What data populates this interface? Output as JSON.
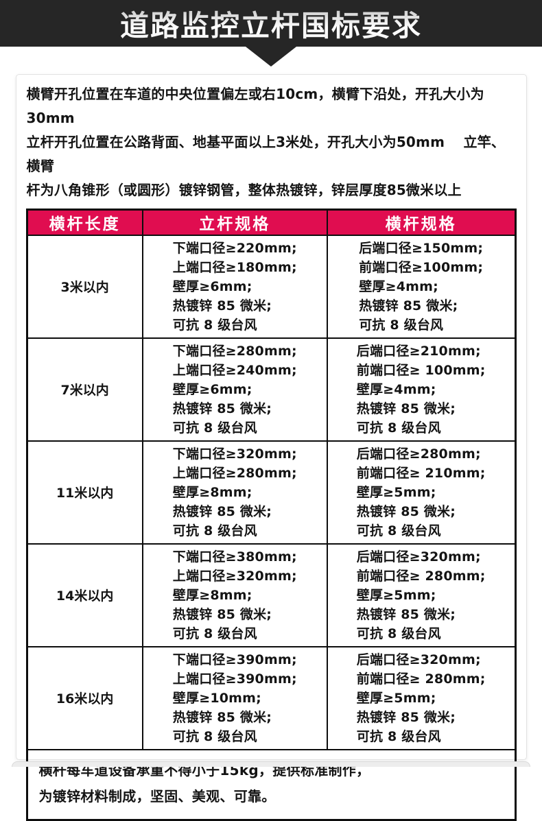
{
  "colors": {
    "accent": "#e00d50",
    "banner_bg": "#262626",
    "table_border": "#0d0d0d"
  },
  "banner": {
    "title": "道路监控立杆国标要求"
  },
  "intro": {
    "lines": [
      "横臂开孔位置在车道的中央位置偏左或右10cm，横臂下沿处，开孔大小为30mm",
      "立杆开孔位置在公路背面、地基平面以上3米处，开孔大小为50mm　 立竿、横臂",
      "杆为八角锥形（或圆形）镀锌钢管，整体热镀锌，锌层厚度85微米以上"
    ]
  },
  "table": {
    "headers": [
      "横杆长度",
      "立杆规格",
      "横杆规格"
    ],
    "rows": [
      {
        "length": "3米以内",
        "pole": [
          "下端口径≥220mm;",
          "上端口径≥180mm;",
          "壁厚≥6mm;",
          "热镀锌 85 微米;",
          "可抗 8 级台风"
        ],
        "crossbar": [
          "后端口径≥150mm;",
          "前端口径≥100mm;",
          "壁厚≥4mm;",
          "热镀锌 85 微米;",
          "可抗 8 级台风"
        ]
      },
      {
        "length": "7米以内",
        "pole": [
          "下端口径≥280mm;",
          "上端口径≥240mm;",
          "壁厚≥6mm;",
          "热镀锌 85 微米;",
          "可抗 8 级台风"
        ],
        "crossbar": [
          "后端口径≥210mm;",
          "前端口径≥ 100mm;",
          "壁厚≥4mm;",
          "热镀锌 85 微米;",
          "可抗 8 级台风"
        ]
      },
      {
        "length": "11米以内",
        "pole": [
          "下端口径≥320mm;",
          "上端口径≥280mm;",
          "壁厚≥8mm;",
          "热镀锌 85 微米;",
          "可抗 8 级台风"
        ],
        "crossbar": [
          "后端口径≥280mm;",
          "前端口径≥ 210mm;",
          "壁厚≥5mm;",
          "热镀锌 85 微米;",
          "可抗 8 级台风"
        ]
      },
      {
        "length": "14米以内",
        "pole": [
          "下端口径≥380mm;",
          "上端口径≥320mm;",
          "壁厚≥8mm;",
          "热镀锌 85 微米;",
          "可抗 8 级台风"
        ],
        "crossbar": [
          "后端口径≥320mm;",
          "前端口径≥ 280mm;",
          "壁厚≥5mm;",
          "热镀锌 85 微米;",
          "可抗 8 级台风"
        ]
      },
      {
        "length": "16米以内",
        "pole": [
          "下端口径≥390mm;",
          "上端口径≥390mm;",
          "壁厚≥10mm;",
          "热镀锌 85 微米;",
          "可抗 8 级台风"
        ],
        "crossbar": [
          "后端口径≥320mm;",
          "前端口径≥ 280mm;",
          "壁厚≥5mm;",
          "热镀锌 85 微米;",
          "可抗 8 级台风"
        ]
      }
    ],
    "footer_lines": [
      "横杆每车道设备承重不得小于15kg，提供标准制作，",
      "为镀锌材料制成，坚固、美观、可靠。"
    ]
  }
}
